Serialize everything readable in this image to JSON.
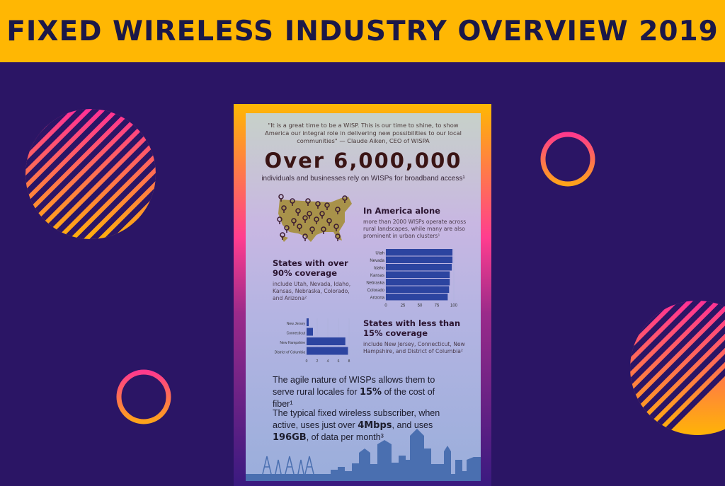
{
  "header": {
    "title": "FIXED WIRELESS INDUSTRY OVERVIEW 2019"
  },
  "colors": {
    "header_bg": "#ffb703",
    "page_bg": "#2b1565",
    "bar": "#2c44a0",
    "map": "#a8924a"
  },
  "infographic": {
    "quote": "\"It is a great time to be a WISP. This is our time to shine, to show America our integral role in delivering new possibilities to our local communities\" — Claude Aiken, CEO of WISPA",
    "headline": "Over 6,000,000",
    "headline_sub": "individuals and businesses rely on WISPs for broadband access¹",
    "america_title": "In America alone",
    "america_text": "more than 2000 WISPs operate across rural landscapes, while many are also prominent in urban clusters¹",
    "high_title": "States with over 90% coverage",
    "high_text": "include Utah, Nevada, Idaho, Kansas, Nebraska, Colorado, and Arizona²",
    "low_title": "States with less than 15% coverage",
    "low_text": "include New Jersey, Connecticut, New Hampshire, and District of Columbia²",
    "fact1_pre": "The agile nature of WISPs allows them to serve rural locales for ",
    "fact1_bold": "15%",
    "fact1_post": " of the cost of fiber¹",
    "fact2_pre": "The typical fixed wireless subscriber, when active, uses just over ",
    "fact2_bold1": "4Mbps",
    "fact2_mid": ", and uses ",
    "fact2_bold2": "196GB",
    "fact2_post": ", of data per month³"
  },
  "chart_data": [
    {
      "type": "bar",
      "orientation": "horizontal",
      "title": "States with over 90% coverage",
      "categories": [
        "Utah",
        "Nevada",
        "Idaho",
        "Kansas",
        "Nebraska",
        "Colorado",
        "Arizona"
      ],
      "values": [
        98,
        98,
        97,
        94,
        94,
        93,
        91
      ],
      "xlim": [
        0,
        100
      ],
      "xticks": [
        0,
        25,
        50,
        75,
        100
      ]
    },
    {
      "type": "bar",
      "orientation": "horizontal",
      "title": "States with less than 15% coverage",
      "categories": [
        "New Jersey",
        "Connecticut",
        "New Hampshire",
        "District of Columbia"
      ],
      "values": [
        0.4,
        1.2,
        7.3,
        7.8
      ],
      "xlim": [
        0,
        8
      ],
      "xticks": [
        0,
        2,
        4,
        6,
        8
      ]
    }
  ]
}
